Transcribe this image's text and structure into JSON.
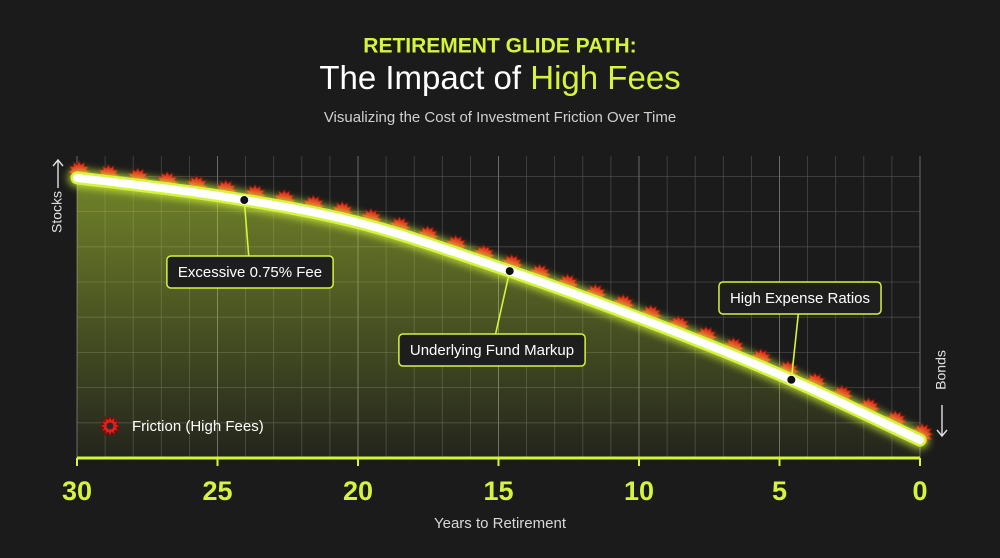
{
  "chart_data": {
    "type": "line",
    "kicker": "RETIREMENT GLIDE PATH:",
    "title_lead": "The Impact of",
    "title_highlight": "High Fees",
    "subtitle": "Visualizing the Cost of Investment Friction Over Time",
    "x_label": "Years to Retirement",
    "y_label_top": "Stocks",
    "y_label_bottom": "Bonds",
    "x": [
      30,
      25,
      20,
      15,
      10,
      5,
      0
    ],
    "series": [
      {
        "name": "Friction (High Fees)",
        "color": "#e3211c",
        "values": [
          94,
          88,
          79,
          64,
          47,
          28,
          6
        ]
      }
    ],
    "xlim": [
      30,
      0
    ],
    "xticks": [
      30,
      25,
      20,
      15,
      10,
      5,
      0
    ],
    "ylim": [
      0,
      100
    ],
    "accent_color": "#d4f53c",
    "line_color": "#ffffff",
    "grid": true,
    "legend": "lower left",
    "annotations": [
      "Excessive 0.75% Fee",
      "Underlying Fund Markup",
      "High Expense Ratios"
    ]
  }
}
